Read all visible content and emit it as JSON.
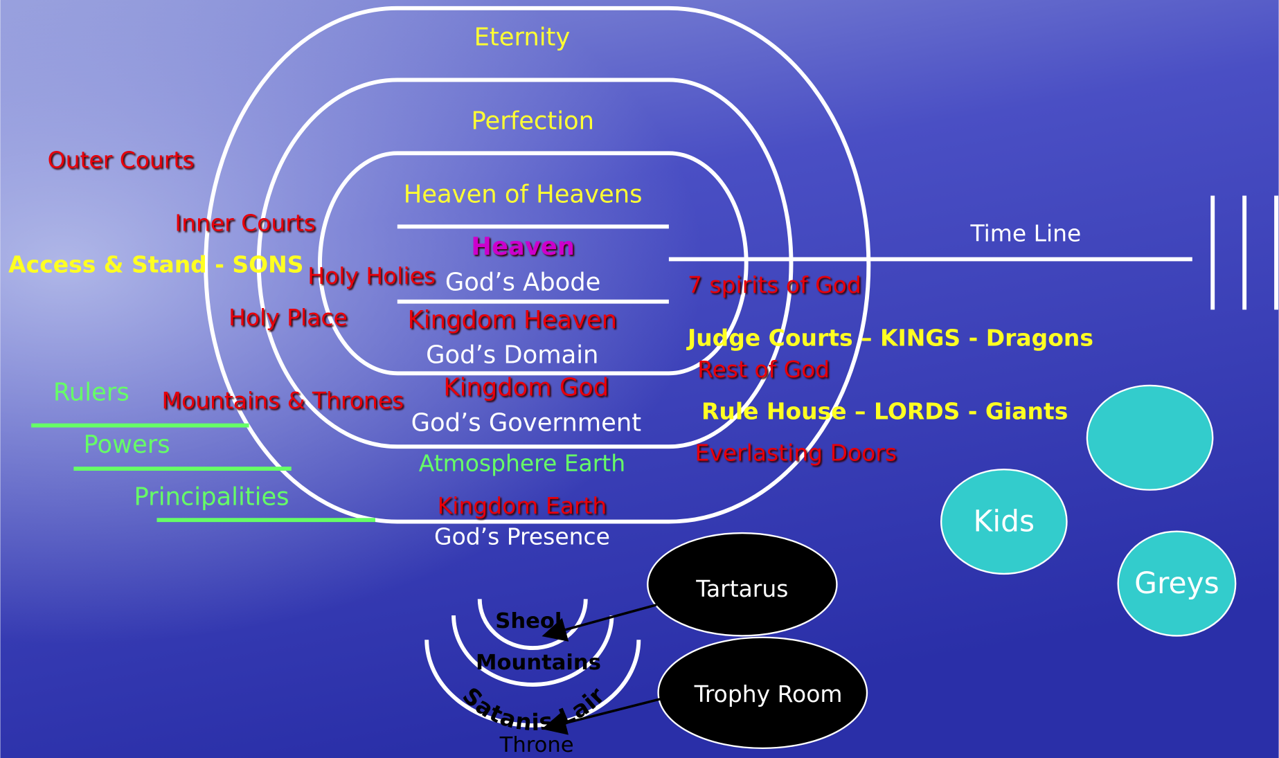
{
  "levels": {
    "eternity": "Eternity",
    "perfection": "Perfection",
    "heaven_of_heavens": "Heaven of Heavens",
    "heaven": "Heaven",
    "gods_abode": "God’s Abode",
    "kingdom_heaven": "Kingdom Heaven",
    "gods_domain": "God’s Domain",
    "kingdom_god": "Kingdom God",
    "gods_government": "God’s Government",
    "atmosphere_earth": "Atmosphere Earth",
    "kingdom_earth": "Kingdom Earth",
    "gods_presence": "God’s Presence"
  },
  "courts": {
    "outer": "Outer Courts",
    "inner": "Inner Courts",
    "access": "Access & Stand - SONS",
    "holy_holies": "Holy Holies",
    "holy_place": "Holy Place",
    "mountains_thrones": "Mountains & Thrones"
  },
  "powers": {
    "rulers": "Rulers",
    "powers": "Powers",
    "principalities": "Principalities"
  },
  "right": {
    "time_line": "Time Line",
    "seven_spirits": "7 spirits of God",
    "judge_courts": "Judge Courts – KINGS - Dragons",
    "rest_of_god": "Rest of God",
    "rule_house": "Rule House – LORDS - Giants",
    "everlasting_doors": "Everlasting Doors"
  },
  "circles": {
    "kids": "Kids",
    "greys": "Greys"
  },
  "underworld": {
    "sheol": "Sheol",
    "mountains": "Mountains",
    "satanis_lair": "Satanis Lair",
    "tartarus": "Tartarus",
    "trophy_room": "Trophy Room",
    "throne": "Throne"
  }
}
